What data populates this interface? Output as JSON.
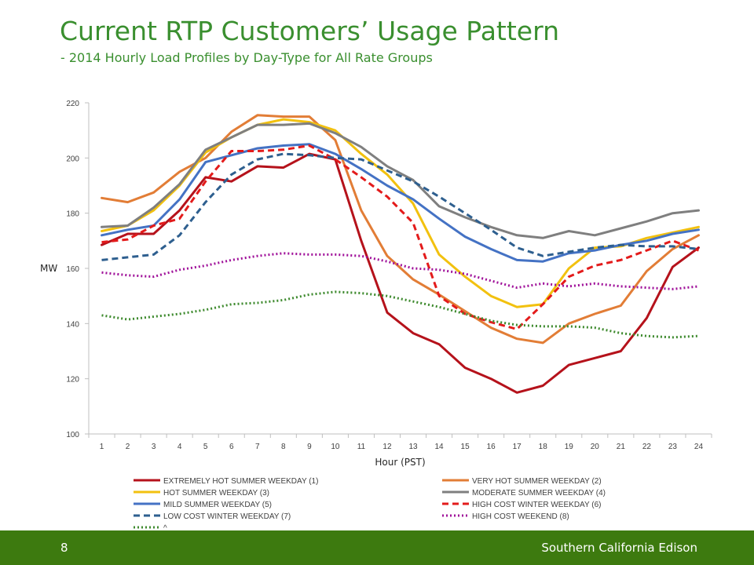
{
  "slide": {
    "title": "Current RTP Customers’ Usage Pattern",
    "subtitle": "- 2014 Hourly Load Profiles by Day-Type for All Rate Groups"
  },
  "footer": {
    "page": "8",
    "company": "Southern California Edison"
  },
  "chart_data": {
    "type": "line",
    "xlabel": "Hour (PST)",
    "ylabel": "MW",
    "x": [
      1,
      2,
      3,
      4,
      5,
      6,
      7,
      8,
      9,
      10,
      11,
      12,
      13,
      14,
      15,
      16,
      17,
      18,
      19,
      20,
      21,
      22,
      23,
      24
    ],
    "ylim": [
      100,
      220
    ],
    "yticks": [
      100,
      120,
      140,
      160,
      180,
      200,
      220
    ],
    "grid": false,
    "legend_position": "bottom",
    "series": [
      {
        "name": "EXTREMELY HOT SUMMER WEEKDAY (1)",
        "color": "#b5121b",
        "dash": "solid",
        "values": [
          168.5,
          172.5,
          172.5,
          181,
          193,
          191.5,
          197,
          196.5,
          201.5,
          199.5,
          170,
          144,
          136.5,
          132.5,
          124,
          120,
          115,
          117.5,
          125,
          127.5,
          130,
          142,
          160.5,
          167.5
        ]
      },
      {
        "name": "VERY HOT SUMMER WEEKDAY (2)",
        "color": "#e27d36",
        "dash": "solid",
        "values": [
          185.5,
          184,
          187.5,
          195,
          200,
          209.5,
          215.5,
          215,
          215,
          206.5,
          181,
          164.5,
          156,
          150.5,
          144.5,
          138.5,
          134.5,
          133,
          140,
          143.5,
          146.5,
          159,
          167,
          172
        ]
      },
      {
        "name": "HOT SUMMER WEEKDAY (3)",
        "color": "#f2c10f",
        "dash": "solid",
        "values": [
          173.5,
          175.5,
          181,
          190,
          202,
          207.5,
          212,
          214,
          213,
          210,
          201.5,
          194,
          183.5,
          165,
          157,
          150,
          146,
          147,
          160,
          167.5,
          168,
          171,
          173,
          175
        ]
      },
      {
        "name": "MODERATE SUMMER WEEKDAY (4)",
        "color": "#7f7f7f",
        "dash": "solid",
        "values": [
          175,
          175.5,
          182,
          190.5,
          203,
          207.5,
          212,
          212,
          212.5,
          209,
          204,
          197,
          192,
          182.5,
          178.5,
          175,
          172,
          171,
          173.5,
          172,
          174.5,
          177,
          180,
          181
        ]
      },
      {
        "name": "MILD SUMMER WEEKDAY (5)",
        "color": "#4472c4",
        "dash": "solid",
        "values": [
          172,
          174,
          175.5,
          185,
          198.5,
          201,
          203.5,
          204.5,
          205,
          201.5,
          196,
          190,
          185,
          178,
          171.5,
          167,
          163,
          162.5,
          165.5,
          166.5,
          168.5,
          170,
          172.5,
          174
        ]
      },
      {
        "name": "HIGH COST WINTER WEEKDAY (6)",
        "color": "#e31b1b",
        "dash": "dashed",
        "values": [
          169.5,
          170.5,
          175.5,
          178,
          191.5,
          202.5,
          202.5,
          203,
          204.5,
          199.5,
          193,
          186,
          176.5,
          150,
          143.5,
          140.5,
          138,
          147,
          157,
          161,
          163,
          166.5,
          170,
          166.5
        ]
      },
      {
        "name": "LOW COST WINTER WEEKDAY (7)",
        "color": "#2e5f8f",
        "dash": "dashed",
        "values": [
          163,
          164,
          165,
          172,
          184,
          194,
          199.5,
          201.5,
          201,
          200,
          199.5,
          195.5,
          191.5,
          186,
          180,
          174,
          167.5,
          164.5,
          166,
          167.5,
          168.5,
          168,
          168,
          167
        ]
      },
      {
        "name": "HIGH COST WEEKEND (8)",
        "color": "#a0129a",
        "dash": "dotted",
        "values": [
          158.5,
          157.5,
          157,
          159.5,
          161,
          163,
          164.5,
          165.5,
          165,
          165,
          164.5,
          162.5,
          160,
          159.5,
          158,
          155.5,
          153,
          154.5,
          153.5,
          154.5,
          153.5,
          153,
          152.5,
          153.5
        ]
      },
      {
        "name": "^",
        "color": "#3e8a2e",
        "dash": "dotted",
        "values": [
          143,
          141.5,
          142.5,
          143.5,
          145,
          147,
          147.5,
          148.5,
          150.5,
          151.5,
          151,
          150,
          148,
          146,
          143.5,
          141,
          139.5,
          139,
          139,
          138.5,
          136.5,
          135.5,
          135,
          135.5
        ]
      }
    ]
  }
}
